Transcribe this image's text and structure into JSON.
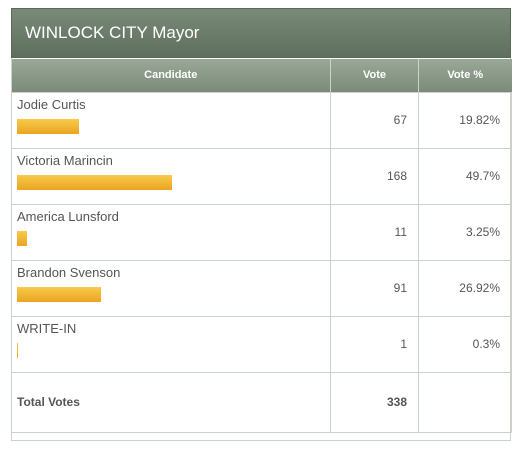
{
  "race": {
    "title": "WINLOCK CITY Mayor"
  },
  "headers": {
    "candidate": "Candidate",
    "vote": "Vote",
    "vote_pct": "Vote %"
  },
  "candidates": [
    {
      "name": "Jodie Curtis",
      "votes": "67",
      "pct": "19.82%",
      "share": 0.1982
    },
    {
      "name": "Victoria Marincin",
      "votes": "168",
      "pct": "49.7%",
      "share": 0.497
    },
    {
      "name": "America Lunsford",
      "votes": "11",
      "pct": "3.25%",
      "share": 0.0325
    },
    {
      "name": "Brandon Svenson",
      "votes": "91",
      "pct": "26.92%",
      "share": 0.2692
    },
    {
      "name": "WRITE-IN",
      "votes": "1",
      "pct": "0.3%",
      "share": 0.003
    }
  ],
  "total": {
    "label": "Total Votes",
    "votes": "338",
    "pct": ""
  },
  "colors": {
    "header_bg": "#6b7b69",
    "bar": "#f2b733",
    "border": "#c9d3cc"
  }
}
